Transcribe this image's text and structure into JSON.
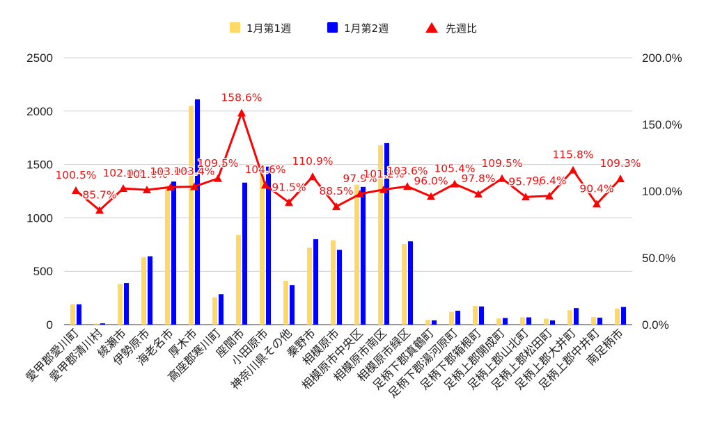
{
  "chart_data": {
    "type": "bar",
    "categories": [
      "愛甲郡愛川町",
      "愛甲郡清川村",
      "綾瀬市",
      "伊勢原市",
      "海老名市",
      "厚木市",
      "高座郡寒川町",
      "座間市",
      "小田原市",
      "神奈川県その他",
      "秦野市",
      "相模原市",
      "相模原市中央区",
      "相模原市南区",
      "相模原市緑区",
      "足柄下郡真鶴町",
      "足柄下郡湯河原町",
      "足柄下郡箱根町",
      "足柄上郡開成町",
      "足柄上郡山北町",
      "足柄上郡松田町",
      "足柄上郡大井町",
      "足柄上郡中井町",
      "南足柄市"
    ],
    "series": [
      {
        "name": "1月第1週",
        "color": "#ffd966",
        "axis": "left",
        "values": [
          190,
          10,
          380,
          630,
          1300,
          2050,
          255,
          840,
          1420,
          410,
          720,
          790,
          1310,
          1680,
          755,
          45,
          120,
          175,
          58,
          68,
          55,
          135,
          70,
          150
        ]
      },
      {
        "name": "1月第2週",
        "color": "#0000ff",
        "axis": "left",
        "values": [
          190,
          12,
          390,
          640,
          1340,
          2110,
          285,
          1330,
          1480,
          370,
          800,
          700,
          1290,
          1700,
          780,
          40,
          130,
          170,
          62,
          68,
          40,
          155,
          65,
          165
        ]
      },
      {
        "name": "先週比",
        "color": "#ff0000",
        "axis": "right",
        "type": "line",
        "marker": "triangle",
        "values": [
          100.5,
          85.7,
          102.0,
          101.0,
          103.0,
          103.4,
          109.5,
          158.6,
          104.6,
          91.5,
          110.9,
          88.5,
          97.9,
          101.2,
          103.6,
          96.0,
          105.4,
          97.8,
          109.5,
          95.7,
          96.4,
          115.8,
          90.4,
          109.3
        ]
      }
    ],
    "labels_ratio": [
      "100.5%",
      "85.7%",
      "102.0%",
      "101.0%",
      "103.0%",
      "103.4%",
      "109.5%",
      "158.6%",
      "104.6%",
      "91.5%",
      "110.9%",
      "88.5%",
      "97.9%",
      "101.2%",
      "103.6%",
      "96.0%",
      "105.4%",
      "97.8%",
      "109.5%",
      "95.7%",
      "96.4%",
      "115.8%",
      "90.4%",
      "109.3%"
    ],
    "ylim": [
      0,
      2500
    ],
    "y_ticks": [
      "0",
      "500",
      "1000",
      "1500",
      "2000",
      "2500"
    ],
    "y2lim": [
      0,
      200
    ],
    "y2_ticks": [
      "0.0%",
      "50.0%",
      "100.0%",
      "150.0%",
      "200.0%"
    ],
    "grid": true,
    "legend_position": "top-center"
  }
}
